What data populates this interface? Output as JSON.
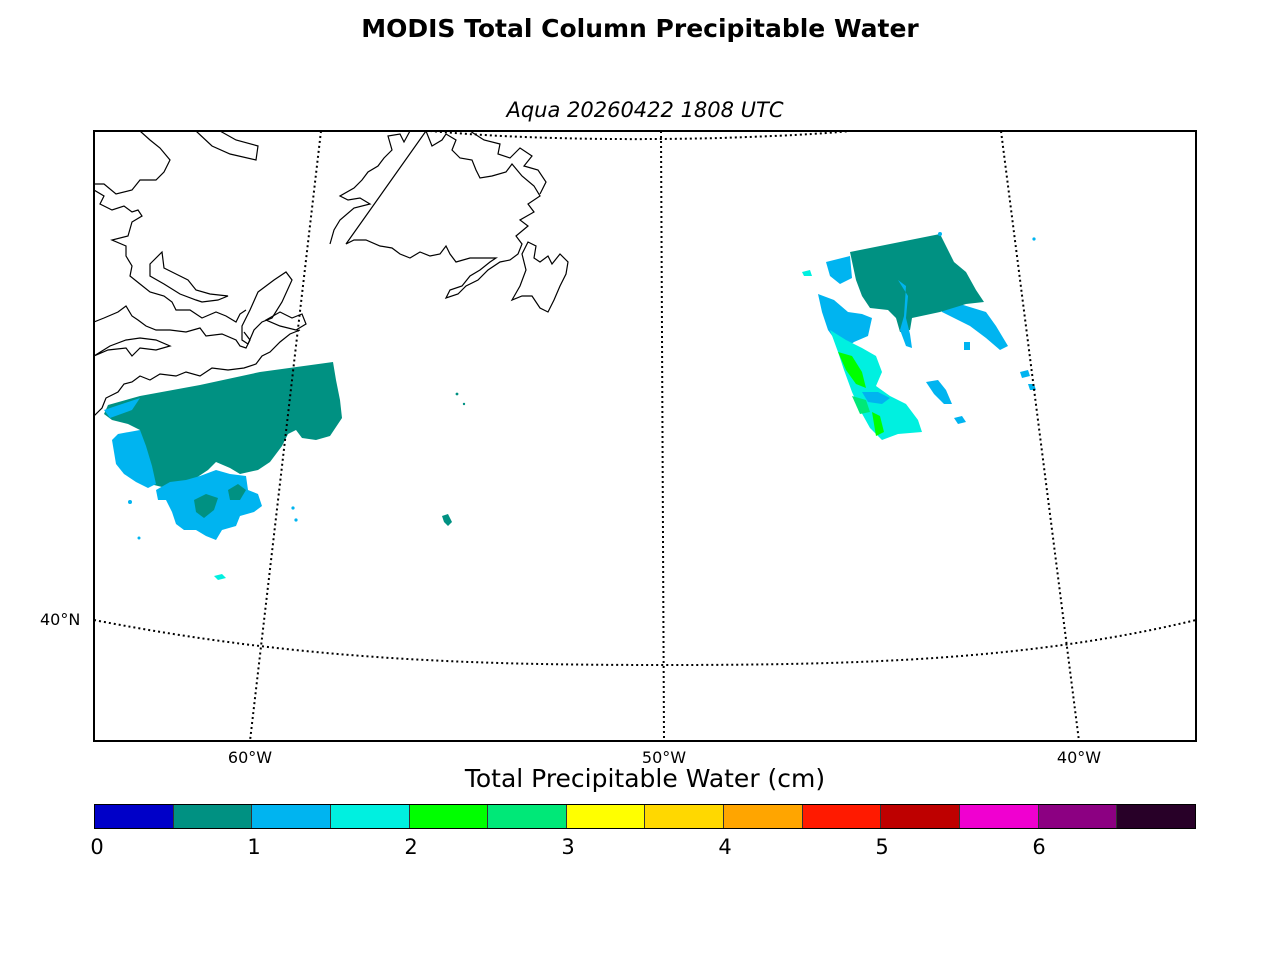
{
  "title": "MODIS Total Column Precipitable Water",
  "subtitle": "Aqua 20260422 1808 UTC",
  "map": {
    "lat_labels": [
      "40°N"
    ],
    "lon_labels": [
      "60°W",
      "50°W",
      "40°W"
    ]
  },
  "colorbar": {
    "title": "Total Precipitable Water (cm)",
    "ticks": [
      "0",
      "1",
      "2",
      "3",
      "4",
      "5",
      "6"
    ],
    "tick_values": [
      0,
      1,
      2,
      3,
      4,
      5,
      6
    ],
    "range": [
      0,
      7
    ],
    "colors": [
      "#0000c8",
      "#009182",
      "#00b4f0",
      "#00f0e0",
      "#00ff00",
      "#00e878",
      "#ffff00",
      "#ffd800",
      "#ffa500",
      "#ff1a00",
      "#be0000",
      "#f000d0",
      "#8c0082",
      "#280028"
    ]
  },
  "legend_colors": {
    "teal": "#009182",
    "sky": "#00b4f0",
    "cyan": "#00f0e0",
    "green": "#00ff00",
    "mint": "#00e878"
  }
}
